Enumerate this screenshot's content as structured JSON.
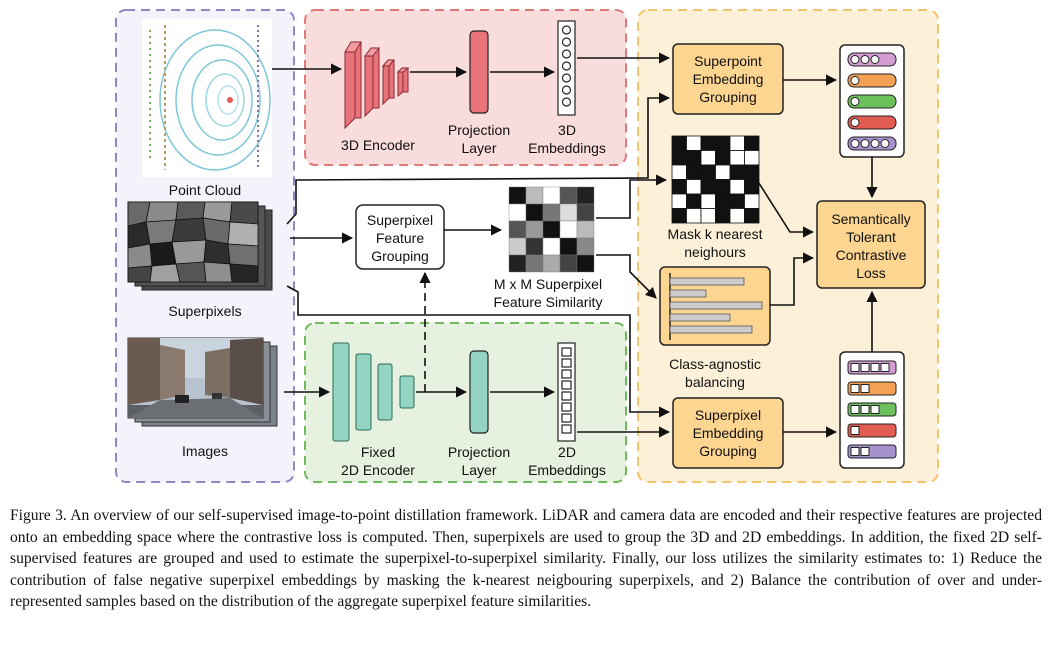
{
  "labels": {
    "point_cloud": "Point Cloud",
    "superpixels": "Superpixels",
    "images": "Images",
    "encoder_3d": "3D Encoder",
    "projection_3d": [
      "Projection",
      "Layer"
    ],
    "embeddings_3d": [
      "3D",
      "Embeddings"
    ],
    "fixed_encoder_2d": [
      "Fixed",
      "2D Encoder"
    ],
    "projection_2d": [
      "Projection",
      "Layer"
    ],
    "embeddings_2d": [
      "2D",
      "Embeddings"
    ],
    "superpixel_feature_grouping": [
      "Superpixel",
      "Feature",
      "Grouping"
    ],
    "similarity_matrix": [
      "M x M Superpixel",
      "Feature Similarity"
    ],
    "mask_knn": [
      "Mask k nearest",
      "neighours"
    ],
    "class_agnostic": [
      "Class-agnostic",
      "balancing"
    ],
    "superpoint_grouping": [
      "Superpoint",
      "Embedding",
      "Grouping"
    ],
    "superpixel_grouping": [
      "Superpixel",
      "Embedding",
      "Grouping"
    ],
    "loss": [
      "Semantically",
      "Tolerant",
      "Contrastive",
      "Loss"
    ]
  },
  "colors": {
    "panel_inputs": "#f4f2fb",
    "panel_inputs_border": "#8f88c4",
    "panel_3d": "#f9dcdc",
    "panel_3d_border": "#e07a7a",
    "panel_2d": "#e6f1df",
    "panel_2d_border": "#6fba5c",
    "panel_loss": "#fdf0d8",
    "panel_loss_border": "#f2c46b",
    "encoder_3d": "#e8737b",
    "encoder_2d": "#94d4c3",
    "orange_box": "#fcd591",
    "embedding_colors": [
      "#d39cd3",
      "#f4a055",
      "#6dc15c",
      "#e35c52",
      "#a891cf"
    ]
  },
  "caption": "Figure 3.  An overview of our self-supervised image-to-point distillation framework.  LiDAR and camera data are encoded and their respective features are projected onto an embedding space where the contrastive loss is computed. Then, superpixels are used to group the 3D and 2D embeddings. In addition, the fixed 2D self-supervised features are grouped and used to estimate the superpixel-to-superpixel similarity. Finally, our loss utilizes the similarity estimates to: 1) Reduce the contribution of false negative superpixel embeddings by masking the k-nearest neigbouring superpixels, and 2) Balance the contribution of over and under-represented samples based on the distribution of the aggregate superpixel feature similarities."
}
